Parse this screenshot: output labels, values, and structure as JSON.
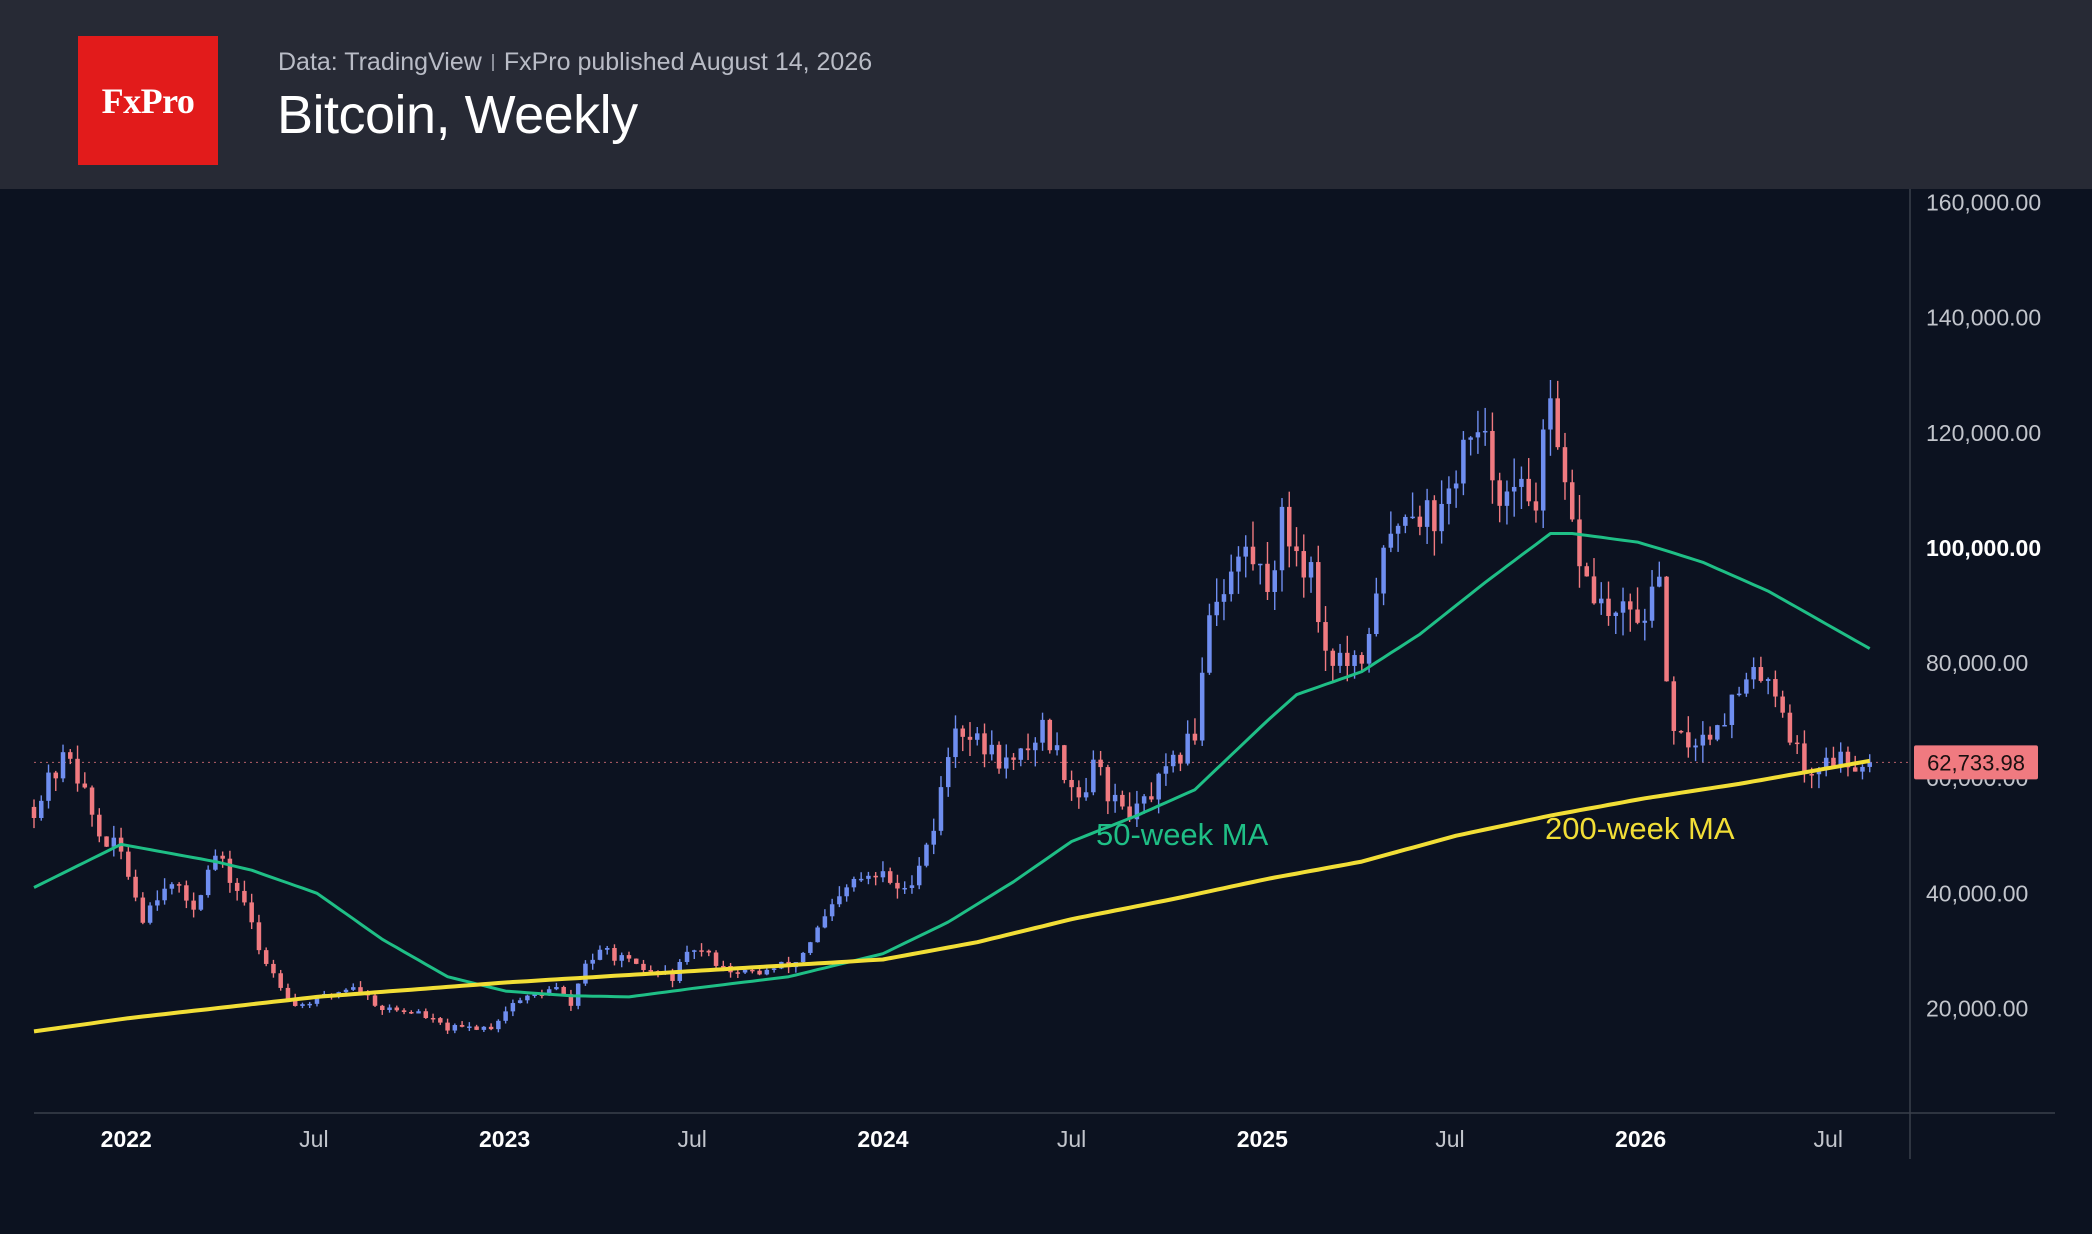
{
  "header": {
    "logo_text": "FxPro",
    "source": "Data: TradingView",
    "published": "FxPro published August 14, 2026",
    "title": "Bitcoin, Weekly"
  },
  "colors": {
    "background": "#0c1220",
    "header_background": "#272a35",
    "logo_red": "#e21b1b",
    "candle_up": "#6f8ef0",
    "candle_down": "#f07a80",
    "ma50": "#1fbf86",
    "ma200": "#f2de36",
    "last_price_label": "#f07a80"
  },
  "chart_data": {
    "type": "candlestick",
    "timeframe": "weekly",
    "y_axis": {
      "ticks": [
        {
          "value": 20000,
          "label": "20,000.00",
          "bold": false
        },
        {
          "value": 40000,
          "label": "40,000.00",
          "bold": false
        },
        {
          "value": 60000,
          "label": "60,000.00",
          "bold": false
        },
        {
          "value": 80000,
          "label": "80,000.00",
          "bold": false
        },
        {
          "value": 100000,
          "label": "100,000.00",
          "bold": true
        },
        {
          "value": 120000,
          "label": "120,000.00",
          "bold": false
        },
        {
          "value": 140000,
          "label": "140,000.00",
          "bold": false
        },
        {
          "value": 160000,
          "label": "160,000.00",
          "bold": false
        }
      ],
      "range": [
        2000,
        162000
      ]
    },
    "x_axis": {
      "range": [
        "2021-10-04",
        "2026-09-14"
      ],
      "ticks": [
        {
          "date": "2022-01-01",
          "label": "2022",
          "bold": true
        },
        {
          "date": "2022-07-01",
          "label": "Jul",
          "bold": false
        },
        {
          "date": "2023-01-01",
          "label": "2023",
          "bold": true
        },
        {
          "date": "2023-07-01",
          "label": "Jul",
          "bold": false
        },
        {
          "date": "2024-01-01",
          "label": "2024",
          "bold": true
        },
        {
          "date": "2024-07-01",
          "label": "Jul",
          "bold": false
        },
        {
          "date": "2025-01-01",
          "label": "2025",
          "bold": true
        },
        {
          "date": "2025-07-01",
          "label": "Jul",
          "bold": false
        },
        {
          "date": "2026-01-01",
          "label": "2026",
          "bold": true
        },
        {
          "date": "2026-07-01",
          "label": "Jul",
          "bold": false
        }
      ]
    },
    "last_price": {
      "value": 62733.98,
      "label": "62,733.98"
    },
    "close_anchors": [
      [
        "2021-10-04",
        55000
      ],
      [
        "2021-10-25",
        61000
      ],
      [
        "2021-11-08",
        64500
      ],
      [
        "2021-11-22",
        57000
      ],
      [
        "2021-12-06",
        50000
      ],
      [
        "2021-12-27",
        47000
      ],
      [
        "2022-01-17",
        36000
      ],
      [
        "2022-02-07",
        42000
      ],
      [
        "2022-03-07",
        38000
      ],
      [
        "2022-03-28",
        46500
      ],
      [
        "2022-04-25",
        38500
      ],
      [
        "2022-05-09",
        30000
      ],
      [
        "2022-06-13",
        20500
      ],
      [
        "2022-07-04",
        21500
      ],
      [
        "2022-08-08",
        24000
      ],
      [
        "2022-09-05",
        20000
      ],
      [
        "2022-10-10",
        19200
      ],
      [
        "2022-11-07",
        16500
      ],
      [
        "2022-12-19",
        16800
      ],
      [
        "2023-01-09",
        21000
      ],
      [
        "2023-02-20",
        23500
      ],
      [
        "2023-03-06",
        20500
      ],
      [
        "2023-03-20",
        28000
      ],
      [
        "2023-04-10",
        30000
      ],
      [
        "2023-05-08",
        27000
      ],
      [
        "2023-06-12",
        25500
      ],
      [
        "2023-07-03",
        30500
      ],
      [
        "2023-08-14",
        26000
      ],
      [
        "2023-09-11",
        26500
      ],
      [
        "2023-10-09",
        28000
      ],
      [
        "2023-11-06",
        35500
      ],
      [
        "2023-12-04",
        42000
      ],
      [
        "2024-01-01",
        43000
      ],
      [
        "2024-01-22",
        40000
      ],
      [
        "2024-02-19",
        51500
      ],
      [
        "2024-03-11",
        70000
      ],
      [
        "2024-04-01",
        66000
      ],
      [
        "2024-05-06",
        62000
      ],
      [
        "2024-06-03",
        69000
      ],
      [
        "2024-07-08",
        57000
      ],
      [
        "2024-07-29",
        64000
      ],
      [
        "2024-08-05",
        56000
      ],
      [
        "2024-09-02",
        54000
      ],
      [
        "2024-10-07",
        62000
      ],
      [
        "2024-10-28",
        68000
      ],
      [
        "2024-11-11",
        90000
      ],
      [
        "2024-12-16",
        99500
      ],
      [
        "2025-01-06",
        94000
      ],
      [
        "2025-01-20",
        104000
      ],
      [
        "2025-02-17",
        96000
      ],
      [
        "2025-03-03",
        82000
      ],
      [
        "2025-04-07",
        78000
      ],
      [
        "2025-04-21",
        94000
      ],
      [
        "2025-05-19",
        108000
      ],
      [
        "2025-06-23",
        105000
      ],
      [
        "2025-07-14",
        118000
      ],
      [
        "2025-08-04",
        117000
      ],
      [
        "2025-08-25",
        108000
      ],
      [
        "2025-09-22",
        110000
      ],
      [
        "2025-10-06",
        123000
      ],
      [
        "2025-10-20",
        108000
      ],
      [
        "2025-11-10",
        94000
      ],
      [
        "2025-12-01",
        88000
      ],
      [
        "2025-12-29",
        88000
      ],
      [
        "2026-01-19",
        92000
      ],
      [
        "2026-02-02",
        66000
      ],
      [
        "2026-03-02",
        67000
      ],
      [
        "2026-04-13",
        76000
      ],
      [
        "2026-05-04",
        79000
      ],
      [
        "2026-05-25",
        68000
      ],
      [
        "2026-06-08",
        61000
      ],
      [
        "2026-07-06",
        63500
      ],
      [
        "2026-08-10",
        62733.98
      ]
    ],
    "moving_averages": [
      {
        "name": "50-week MA",
        "label": "50-week MA",
        "color_key": "ma50",
        "points": [
          [
            "2021-10-04",
            41000
          ],
          [
            "2021-12-27",
            48500
          ],
          [
            "2022-03-28",
            45500
          ],
          [
            "2022-05-02",
            44000
          ],
          [
            "2022-07-04",
            40000
          ],
          [
            "2022-09-05",
            32000
          ],
          [
            "2022-11-07",
            25500
          ],
          [
            "2023-01-02",
            23000
          ],
          [
            "2023-03-06",
            22200
          ],
          [
            "2023-05-01",
            22000
          ],
          [
            "2023-07-03",
            23500
          ],
          [
            "2023-10-02",
            25500
          ],
          [
            "2024-01-01",
            29500
          ],
          [
            "2024-03-04",
            35000
          ],
          [
            "2024-05-06",
            42000
          ],
          [
            "2024-07-01",
            49000
          ],
          [
            "2024-09-02",
            53500
          ],
          [
            "2024-10-28",
            58000
          ],
          [
            "2024-12-02",
            64000
          ],
          [
            "2025-01-06",
            70000
          ],
          [
            "2025-02-03",
            74500
          ],
          [
            "2025-04-07",
            78500
          ],
          [
            "2025-06-02",
            85000
          ],
          [
            "2025-08-04",
            94000
          ],
          [
            "2025-10-06",
            102500
          ],
          [
            "2025-10-27",
            102500
          ],
          [
            "2025-12-29",
            101000
          ],
          [
            "2026-01-26",
            99500
          ],
          [
            "2026-03-02",
            97500
          ],
          [
            "2026-05-04",
            92500
          ],
          [
            "2026-08-10",
            82500
          ]
        ]
      },
      {
        "name": "200-week MA",
        "label": "200-week MA",
        "color_key": "ma200",
        "points": [
          [
            "2021-10-04",
            16000
          ],
          [
            "2022-01-03",
            18300
          ],
          [
            "2022-07-04",
            22000
          ],
          [
            "2023-01-02",
            24500
          ],
          [
            "2023-07-03",
            26500
          ],
          [
            "2024-01-01",
            28500
          ],
          [
            "2024-04-01",
            31500
          ],
          [
            "2024-07-01",
            35500
          ],
          [
            "2024-10-07",
            39000
          ],
          [
            "2025-01-06",
            42500
          ],
          [
            "2025-04-07",
            45500
          ],
          [
            "2025-07-07",
            50000
          ],
          [
            "2025-10-06",
            53500
          ],
          [
            "2026-01-05",
            56500
          ],
          [
            "2026-04-06",
            59000
          ],
          [
            "2026-08-10",
            63000
          ]
        ]
      }
    ]
  }
}
